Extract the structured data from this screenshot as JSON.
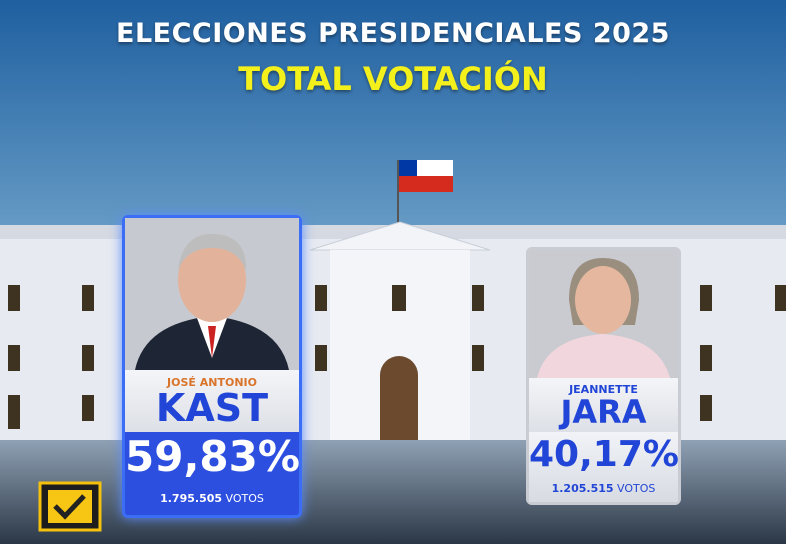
{
  "header": {
    "title": "ELECCIONES PRESIDENCIALES 2025",
    "subtitle": "TOTAL VOTACIÓN"
  },
  "candidates": [
    {
      "first_name": "JOSÉ ANTONIO",
      "last_name": "KAST",
      "percent": "59,83%",
      "votes": "1.795.505",
      "votes_unit": "VOTOS"
    },
    {
      "first_name": "JEANNETTE",
      "last_name": "JARA",
      "percent": "40,17%",
      "votes": "1.205.515",
      "votes_unit": "VOTOS"
    }
  ]
}
